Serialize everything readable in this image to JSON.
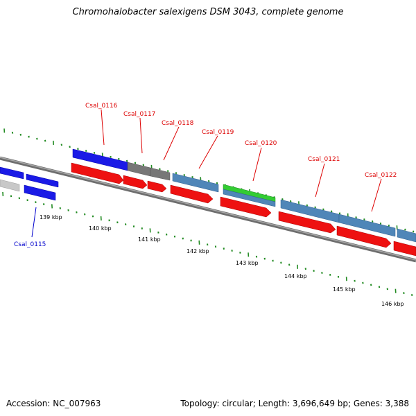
{
  "title": "Chromohalobacter salexigens DSM 3043, complete genome",
  "footer": {
    "accession": "Accession: NC_007963",
    "summary": "Topology: circular; Length: 3,696,649 bp; Genes: 3,388"
  },
  "colors": {
    "label_red": "#dd0000",
    "label_blue": "#0000cc",
    "tick_green": "#228b22",
    "cds_red": "#ee1111",
    "cds_blue": "#1a1ae6",
    "steel_blue": "#4f86b8",
    "gray": "#777777",
    "light_gray": "#c8c8c8",
    "green": "#33cc33"
  },
  "axis_labels": [
    "139 kbp",
    "140 kbp",
    "141 kbp",
    "142 kbp",
    "143 kbp",
    "144 kbp",
    "145 kbp",
    "146 kbp"
  ],
  "gene_labels": [
    "Csal_0115",
    "Csal_0116",
    "Csal_0117",
    "Csal_0118",
    "Csal_0119",
    "Csal_0120",
    "Csal_0121",
    "Csal_0122"
  ]
}
